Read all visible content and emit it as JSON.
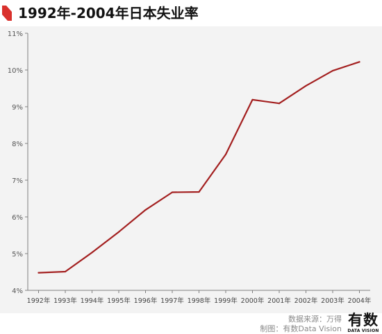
{
  "header": {
    "title": "1992年-2004年日本失业率",
    "accent_color": "#d9302c"
  },
  "chart_data": {
    "type": "line",
    "title": "1992年-2004年日本失业率",
    "xlabel": "",
    "ylabel": "",
    "categories": [
      "1992年",
      "1993年",
      "1994年",
      "1995年",
      "1996年",
      "1997年",
      "1998年",
      "1999年",
      "2000年",
      "2001年",
      "2002年",
      "2003年",
      "2004年"
    ],
    "series": [
      {
        "values": [
          4.48,
          4.51,
          5.03,
          5.59,
          6.19,
          6.67,
          6.68,
          7.7,
          9.19,
          9.09,
          9.57,
          9.98,
          10.22
        ],
        "color": "#a31f1f"
      }
    ],
    "ylim": [
      4,
      11
    ],
    "yticks": [
      "4%",
      "5%",
      "6%",
      "7%",
      "8%",
      "9%",
      "10%",
      "11%"
    ],
    "grid": false,
    "legend": "none"
  },
  "footer": {
    "source": "数据来源：万得",
    "credit": "制图：有数Data Vision",
    "logo_cn": "有数",
    "logo_en": "DATA VISION"
  }
}
